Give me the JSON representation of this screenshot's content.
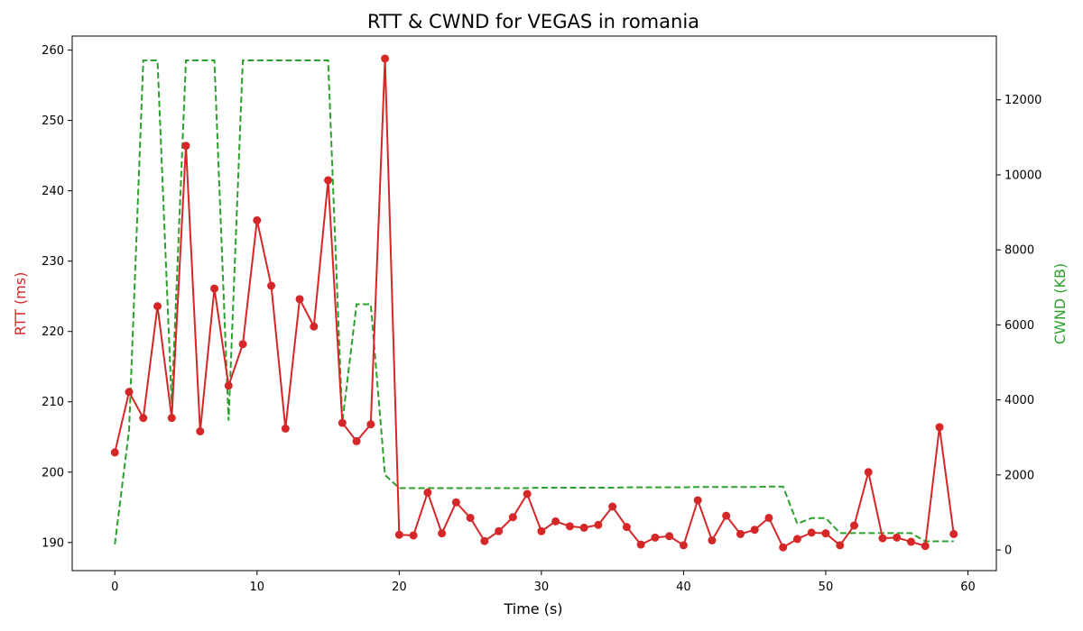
{
  "chart_data": {
    "type": "line",
    "title": "RTT & CWND for VEGAS in romania",
    "xlabel": "Time (s)",
    "ylabel_left": "RTT (ms)",
    "ylabel_right": "CWND (KB)",
    "xlim": [
      -3,
      62
    ],
    "ylim_left": [
      186,
      262
    ],
    "ylim_right": [
      -550,
      13700
    ],
    "x_ticks": [
      0,
      10,
      20,
      30,
      40,
      50,
      60
    ],
    "y_ticks_left": [
      190,
      200,
      210,
      220,
      230,
      240,
      250,
      260
    ],
    "y_ticks_right": [
      0,
      2000,
      4000,
      6000,
      8000,
      10000,
      12000
    ],
    "grid": false,
    "legend": "none",
    "x": [
      0,
      1,
      2,
      3,
      4,
      5,
      6,
      7,
      8,
      9,
      10,
      11,
      12,
      13,
      14,
      15,
      16,
      17,
      18,
      19,
      20,
      21,
      22,
      23,
      24,
      25,
      26,
      27,
      28,
      29,
      30,
      31,
      32,
      33,
      34,
      35,
      36,
      37,
      38,
      39,
      40,
      41,
      42,
      43,
      44,
      45,
      46,
      47,
      48,
      49,
      50,
      51,
      52,
      53,
      54,
      55,
      56,
      57,
      58,
      59
    ],
    "series": [
      {
        "axis": "left",
        "color": "#d62728",
        "style": "solid-markers",
        "values": [
          202.8,
          211.4,
          207.7,
          223.6,
          207.7,
          246.4,
          205.8,
          226.1,
          212.3,
          218.2,
          235.8,
          226.5,
          206.2,
          224.6,
          220.7,
          241.5,
          207.0,
          204.4,
          206.8,
          258.8,
          191.1,
          191.0,
          197.1,
          191.3,
          195.7,
          193.5,
          190.2,
          191.6,
          193.6,
          196.9,
          191.6,
          193.0,
          192.3,
          192.1,
          192.5,
          195.1,
          192.2,
          189.7,
          190.7,
          190.9,
          189.6,
          196.0,
          190.3,
          193.8,
          191.2,
          191.8,
          193.5,
          189.3,
          190.5,
          191.4,
          191.3,
          189.6,
          192.4,
          200.0,
          190.6,
          190.7,
          190.1,
          189.5,
          206.4,
          191.2
        ]
      },
      {
        "axis": "right",
        "color": "#2ca02c",
        "style": "dashed",
        "values": [
          150,
          3200,
          13050,
          13050,
          3900,
          13050,
          13050,
          13050,
          3450,
          13050,
          13050,
          13050,
          13050,
          13050,
          13050,
          13050,
          3400,
          6550,
          6550,
          2000,
          1650,
          1650,
          1650,
          1650,
          1650,
          1650,
          1650,
          1650,
          1650,
          1650,
          1660,
          1660,
          1660,
          1660,
          1660,
          1660,
          1670,
          1670,
          1670,
          1670,
          1670,
          1680,
          1680,
          1680,
          1680,
          1680,
          1690,
          1690,
          700,
          850,
          850,
          450,
          450,
          450,
          450,
          450,
          450,
          230,
          230,
          230
        ]
      }
    ]
  }
}
